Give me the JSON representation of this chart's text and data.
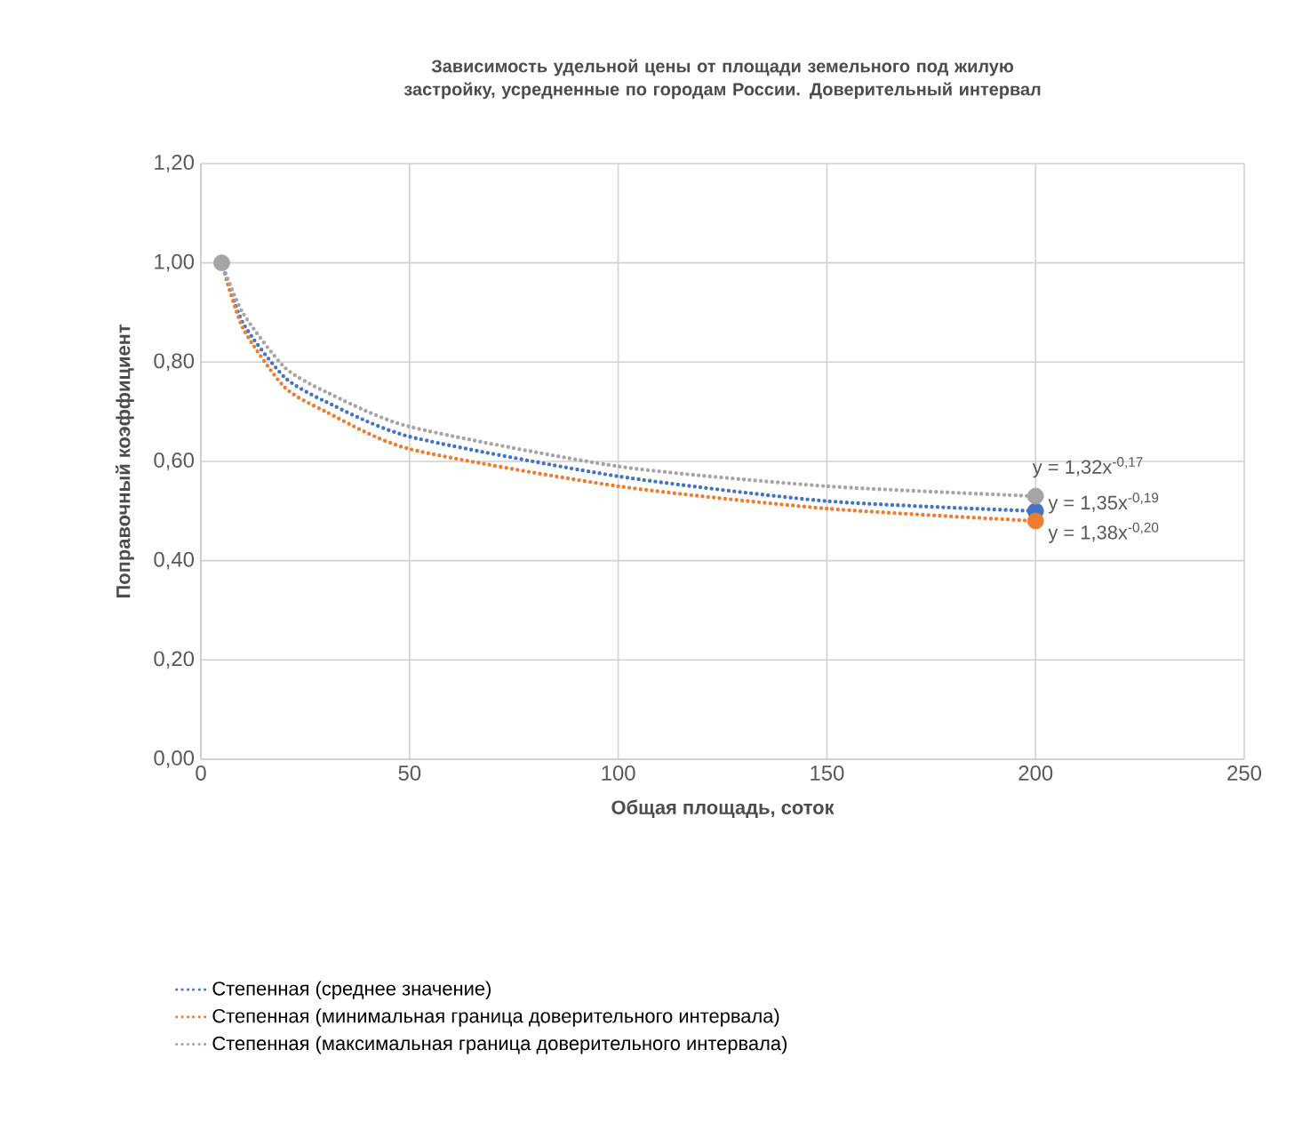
{
  "chart_data": {
    "type": "line",
    "title": "Зависимость удельной цены от площади земельного под жилую застройку, усредненные по городам России. Доверительный интервал",
    "xlabel": "Общая площадь, соток",
    "ylabel": "Поправочный коэффициент",
    "xlim": [
      0,
      250
    ],
    "xticks": [
      0,
      50,
      100,
      150,
      200,
      250
    ],
    "ylim": [
      0,
      1.2
    ],
    "yticks": [
      {
        "value": 0,
        "label": "0,00"
      },
      {
        "value": 0.2,
        "label": "0,20"
      },
      {
        "value": 0.4,
        "label": "0,40"
      },
      {
        "value": 0.6,
        "label": "0,60"
      },
      {
        "value": 0.8,
        "label": "0,80"
      },
      {
        "value": 1.0,
        "label": "1,00"
      },
      {
        "value": 1.2,
        "label": "1,20"
      }
    ],
    "grid": true,
    "legend": "bottom",
    "series": [
      {
        "name": "Степенная (среднее значение)",
        "color": "#4472c4",
        "line_style": "dotted",
        "x": [
          5,
          10,
          20,
          30,
          50,
          100,
          150,
          200
        ],
        "values": [
          1.0,
          0.88,
          0.77,
          0.72,
          0.65,
          0.57,
          0.52,
          0.5
        ]
      },
      {
        "name": "Степенная (минимальная граница доверительного интервала)",
        "color": "#ed7d31",
        "line_style": "dotted",
        "x": [
          5,
          10,
          20,
          30,
          50,
          100,
          150,
          200
        ],
        "values": [
          1.0,
          0.87,
          0.75,
          0.7,
          0.625,
          0.55,
          0.505,
          0.48
        ]
      },
      {
        "name": "Степенная (максимальная граница доверительного интервала)",
        "color": "#a5a5a5",
        "line_style": "dotted",
        "x": [
          5,
          10,
          20,
          30,
          50,
          100,
          150,
          200
        ],
        "values": [
          1.0,
          0.9,
          0.79,
          0.74,
          0.67,
          0.59,
          0.55,
          0.53
        ]
      },
      {
        "type": "scatter",
        "color": "#4472c4",
        "marker": "circle",
        "x": [
          200
        ],
        "values": [
          0.5
        ]
      },
      {
        "type": "scatter",
        "color": "#ed7d31",
        "marker": "circle",
        "x": [
          200
        ],
        "values": [
          0.48
        ]
      },
      {
        "type": "scatter",
        "color": "#a5a5a5",
        "marker": "circle",
        "x": [
          5,
          200
        ],
        "values": [
          1.0,
          0.53
        ]
      }
    ],
    "annotations": [
      "y = 1,32x$^{-0,17}$",
      "y = 1,35x$^{-0,19}$",
      "y = 1,38x$^{-0,20}$"
    ]
  }
}
